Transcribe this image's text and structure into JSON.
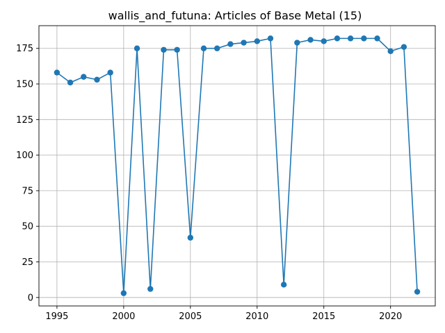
{
  "chart_data": {
    "type": "line",
    "title": "wallis_and_futuna: Articles of Base Metal (15)",
    "xlabel": "",
    "ylabel": "",
    "grid": true,
    "xlim": [
      1993.65,
      2023.35
    ],
    "ylim": [
      -5.95,
      190.95
    ],
    "x_ticks": [
      1995,
      2000,
      2005,
      2010,
      2015,
      2020
    ],
    "y_ticks": [
      0,
      25,
      50,
      75,
      100,
      125,
      150,
      175
    ],
    "series": [
      {
        "color": "#1f77b4",
        "marker": "circle",
        "x": [
          1995,
          1996,
          1997,
          1998,
          1999,
          2000,
          2001,
          2002,
          2003,
          2004,
          2005,
          2006,
          2007,
          2008,
          2009,
          2010,
          2011,
          2012,
          2013,
          2014,
          2015,
          2016,
          2017,
          2018,
          2019,
          2020,
          2021,
          2022
        ],
        "values": [
          158,
          151,
          155,
          153,
          158,
          3,
          175,
          6,
          174,
          174,
          42,
          175,
          175,
          178,
          179,
          180,
          182,
          9,
          179,
          181,
          180,
          182,
          182,
          182,
          182,
          173,
          176,
          4
        ]
      }
    ]
  }
}
